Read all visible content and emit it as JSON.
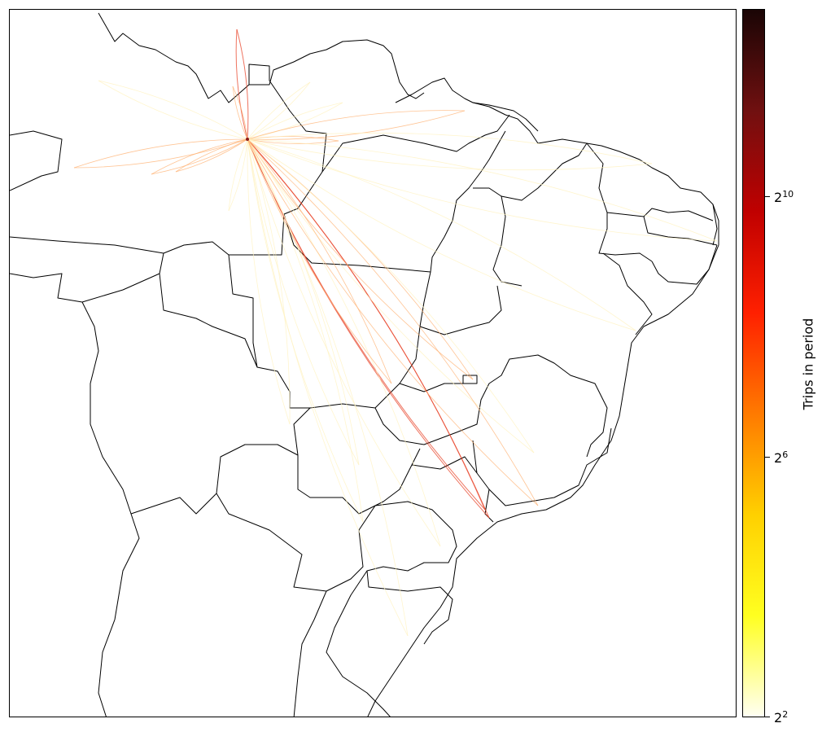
{
  "colorbar": {
    "label": "Trips in period",
    "scale": "log2",
    "range": [
      4,
      4096
    ],
    "colormap": [
      "#fffff2",
      "#ffff20",
      "#ffd000",
      "#ff7a00",
      "#ff2000",
      "#c00000",
      "#701010",
      "#1a0505"
    ],
    "ticks": [
      {
        "base": "2",
        "exp": "10"
      },
      {
        "base": "2",
        "exp": "6"
      },
      {
        "base": "2",
        "exp": "2"
      }
    ]
  },
  "map": {
    "region": "Brazil",
    "hub": "Manaus",
    "state_boundary_color": "#000000",
    "flow_colors": {
      "low": "#fff3c2",
      "mid": "#ffb070",
      "high": "#e8442a"
    }
  }
}
